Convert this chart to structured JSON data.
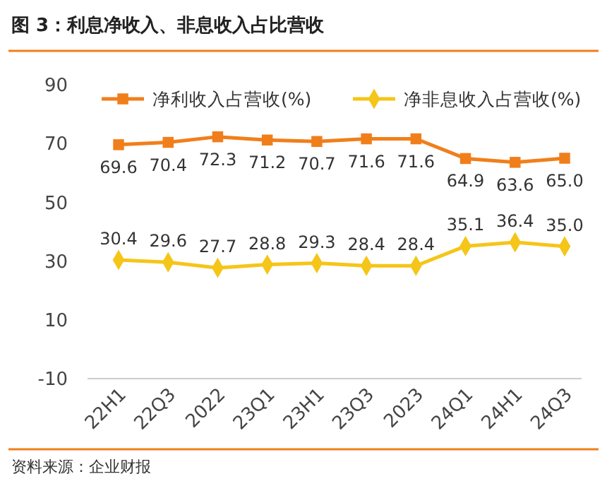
{
  "chart_data": {
    "type": "line",
    "title": "图 3：利息净收入、非息收入占比营收",
    "categories": [
      "22H1",
      "22Q3",
      "2022",
      "23Q1",
      "23H1",
      "23Q3",
      "2023",
      "24Q1",
      "24H1",
      "24Q3"
    ],
    "series": [
      {
        "name": "净利收入占营收(%)",
        "color": "#f07f1b",
        "marker": "square",
        "values": [
          69.6,
          70.4,
          72.3,
          71.2,
          70.7,
          71.6,
          71.6,
          64.9,
          63.6,
          65.0
        ],
        "value_labels": [
          "69.6",
          "70.4",
          "72.3",
          "71.2",
          "70.7",
          "71.6",
          "71.6",
          "64.9",
          "63.6",
          "65.0"
        ]
      },
      {
        "name": "净非息收入占营收(%)",
        "color": "#f5c518",
        "marker": "diamond",
        "values": [
          30.4,
          29.6,
          27.7,
          28.8,
          29.3,
          28.4,
          28.4,
          35.1,
          36.4,
          35.0
        ],
        "value_labels": [
          "30.4",
          "29.6",
          "27.7",
          "28.8",
          "29.3",
          "28.4",
          "28.4",
          "35.1",
          "36.4",
          "35.0"
        ]
      }
    ],
    "ylim": [
      -10,
      90
    ],
    "yticks": [
      -10,
      10,
      30,
      50,
      70,
      90
    ],
    "legend": "top",
    "grid": false,
    "annotations": [
      "资料来源：企业财报"
    ]
  }
}
